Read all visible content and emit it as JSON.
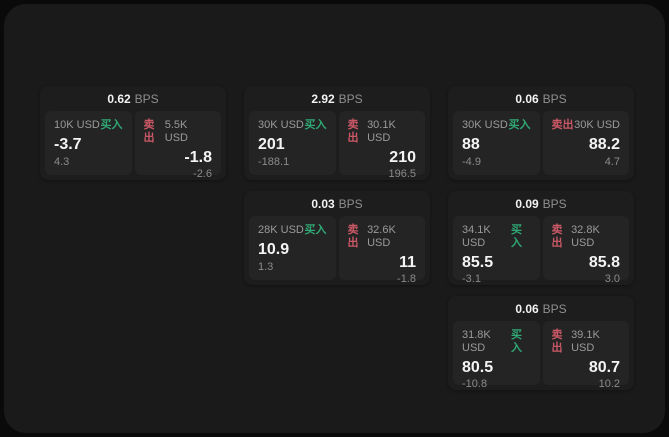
{
  "labels": {
    "bps_unit": "BPS",
    "buy": "买入",
    "sell": "卖出"
  },
  "colors": {
    "outer_background": "#0a0a0a",
    "panel_background": "#1a1a1a",
    "card_background": "#1d1d1d",
    "side_panel_background": "#242424",
    "buy_green": "#2fa874",
    "sell_red": "#cb5866",
    "primary_text": "#f2f2f2",
    "secondary_text": "#9a9a9a"
  },
  "cards": [
    {
      "bps": "0.62",
      "buy": {
        "amount": "10K USD",
        "price": "-3.7",
        "delta": "4.3"
      },
      "sell": {
        "amount": "5.5K USD",
        "price": "-1.8",
        "delta": "-2.6"
      }
    },
    {
      "bps": "2.92",
      "buy": {
        "amount": "30K USD",
        "price": "201",
        "delta": "-188.1"
      },
      "sell": {
        "amount": "30.1K USD",
        "price": "210",
        "delta": "196.5"
      }
    },
    {
      "bps": "0.06",
      "buy": {
        "amount": "30K USD",
        "price": "88",
        "delta": "-4.9"
      },
      "sell": {
        "amount": "30K USD",
        "price": "88.2",
        "delta": "4.7"
      }
    },
    {
      "bps": "0.03",
      "buy": {
        "amount": "28K USD",
        "price": "10.9",
        "delta": "1.3"
      },
      "sell": {
        "amount": "32.6K USD",
        "price": "11",
        "delta": "-1.8"
      }
    },
    {
      "bps": "0.09",
      "buy": {
        "amount": "34.1K USD",
        "price": "85.5",
        "delta": "-3.1"
      },
      "sell": {
        "amount": "32.8K USD",
        "price": "85.8",
        "delta": "3.0"
      }
    },
    {
      "bps": "0.06",
      "buy": {
        "amount": "31.8K USD",
        "price": "80.5",
        "delta": "-10.8"
      },
      "sell": {
        "amount": "39.1K USD",
        "price": "80.7",
        "delta": "10.2"
      }
    }
  ]
}
